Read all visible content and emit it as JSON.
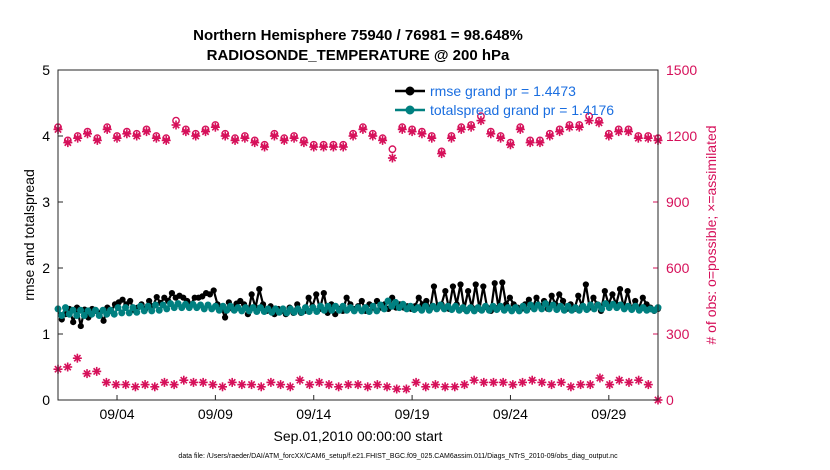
{
  "chart_data": {
    "type": "line",
    "title_line1": "Northern Hemisphere 75940 / 76981 = 98.648%",
    "title_line2": "RADIOSONDE_TEMPERATURE @ 200 hPa",
    "xlabel": "Sep.01,2010 00:00:00 start",
    "ylabel_left": "rmse and totalspread",
    "ylabel_right": "# of obs: o=possible; ×=assimilated",
    "footer": "data file: /Users/raeder/DAI/ATM_forcXX/CAM6_setup/f.e21.FHIST_BGC.f09_025.CAM6assim.011/Diags_NTrS_2010-09/obs_diag_output.nc",
    "x_range_days": [
      1,
      31.5
    ],
    "x_ticks": [
      {
        "day": 4,
        "label": "09/04"
      },
      {
        "day": 9,
        "label": "09/09"
      },
      {
        "day": 14,
        "label": "09/14"
      },
      {
        "day": 19,
        "label": "09/19"
      },
      {
        "day": 24,
        "label": "09/24"
      },
      {
        "day": 29,
        "label": "09/29"
      }
    ],
    "ylim_left": [
      0,
      5
    ],
    "yticks_left": [
      "0",
      "1",
      "2",
      "3",
      "4",
      "5"
    ],
    "ylim_right": [
      0,
      1500
    ],
    "yticks_right": [
      "0",
      "300",
      "600",
      "900",
      "1200",
      "1500"
    ],
    "colors": {
      "rmse": "#000000",
      "spread": "#008080",
      "obs": "#d6105a"
    },
    "legend": [
      {
        "name": "rmse grand pr = 1.4473",
        "series": "rmse"
      },
      {
        "name": "totalspread grand pr = 1.4176",
        "series": "spread"
      }
    ],
    "series": [
      {
        "name": "rmse",
        "axis": "left",
        "values": [
          1.38,
          1.22,
          1.3,
          1.38,
          1.18,
          1.4,
          1.12,
          1.37,
          1.25,
          1.38,
          1.35,
          1.32,
          1.2,
          1.4,
          1.35,
          1.45,
          1.48,
          1.52,
          1.45,
          1.5,
          1.36,
          1.4,
          1.45,
          1.38,
          1.5,
          1.42,
          1.56,
          1.47,
          1.55,
          1.5,
          1.62,
          1.55,
          1.58,
          1.55,
          1.5,
          1.45,
          1.55,
          1.55,
          1.57,
          1.62,
          1.6,
          1.66,
          1.45,
          1.4,
          1.25,
          1.48,
          1.38,
          1.46,
          1.5,
          1.45,
          1.3,
          1.6,
          1.4,
          1.68,
          1.45,
          1.35,
          1.42,
          1.3,
          1.38,
          1.35,
          1.3,
          1.4,
          1.32,
          1.45,
          1.32,
          1.35,
          1.55,
          1.42,
          1.6,
          1.38,
          1.62,
          1.32,
          1.45,
          1.3,
          1.38,
          1.35,
          1.55,
          1.45,
          1.38,
          1.42,
          1.5,
          1.35,
          1.45,
          1.4,
          1.5,
          1.4,
          1.45,
          1.38,
          1.55,
          1.4,
          1.45,
          1.4,
          1.42,
          1.38,
          1.42,
          1.55,
          1.45,
          1.5,
          1.38,
          1.72,
          1.4,
          1.45,
          1.65,
          1.38,
          1.72,
          1.45,
          1.75,
          1.38,
          1.65,
          1.4,
          1.75,
          1.38,
          1.72,
          1.4,
          1.35,
          1.77,
          1.4,
          1.78,
          1.45,
          1.55,
          1.45,
          1.4,
          1.38,
          1.45,
          1.52,
          1.4,
          1.55,
          1.42,
          1.5,
          1.38,
          1.58,
          1.45,
          1.6,
          1.5,
          1.38,
          1.45,
          1.38,
          1.58,
          1.42,
          1.75,
          1.4,
          1.55,
          1.45,
          1.35,
          1.65,
          1.45,
          1.6,
          1.45,
          1.68,
          1.4,
          1.65,
          1.38,
          1.5,
          1.4,
          1.55,
          1.45,
          1.4,
          1.35,
          1.38
        ]
      },
      {
        "name": "totalspread",
        "axis": "left",
        "values": [
          1.38,
          1.28,
          1.4,
          1.3,
          1.36,
          1.28,
          1.36,
          1.28,
          1.35,
          1.3,
          1.36,
          1.28,
          1.36,
          1.3,
          1.36,
          1.3,
          1.4,
          1.32,
          1.4,
          1.32,
          1.4,
          1.33,
          1.42,
          1.35,
          1.42,
          1.35,
          1.44,
          1.36,
          1.44,
          1.38,
          1.46,
          1.4,
          1.46,
          1.4,
          1.45,
          1.4,
          1.45,
          1.4,
          1.44,
          1.38,
          1.44,
          1.38,
          1.42,
          1.36,
          1.42,
          1.36,
          1.42,
          1.36,
          1.4,
          1.35,
          1.4,
          1.35,
          1.4,
          1.34,
          1.4,
          1.34,
          1.38,
          1.33,
          1.38,
          1.33,
          1.38,
          1.32,
          1.38,
          1.33,
          1.38,
          1.33,
          1.4,
          1.34,
          1.4,
          1.34,
          1.42,
          1.36,
          1.42,
          1.36,
          1.42,
          1.36,
          1.42,
          1.36,
          1.4,
          1.35,
          1.4,
          1.35,
          1.4,
          1.34,
          1.42,
          1.35,
          1.44,
          1.38,
          1.5,
          1.42,
          1.48,
          1.4,
          1.45,
          1.38,
          1.42,
          1.37,
          1.4,
          1.36,
          1.42,
          1.36,
          1.42,
          1.38,
          1.44,
          1.38,
          1.42,
          1.37,
          1.42,
          1.36,
          1.4,
          1.35,
          1.4,
          1.35,
          1.4,
          1.36,
          1.42,
          1.36,
          1.42,
          1.37,
          1.42,
          1.36,
          1.4,
          1.35,
          1.4,
          1.35,
          1.42,
          1.36,
          1.44,
          1.38,
          1.44,
          1.38,
          1.46,
          1.38,
          1.44,
          1.37,
          1.42,
          1.36,
          1.42,
          1.36,
          1.4,
          1.36,
          1.42,
          1.37,
          1.44,
          1.38,
          1.44,
          1.38,
          1.46,
          1.4,
          1.45,
          1.4,
          1.44,
          1.38,
          1.42,
          1.37,
          1.42,
          1.36,
          1.4,
          1.36,
          1.38,
          1.36,
          1.4
        ]
      },
      {
        "name": "obs_possible",
        "axis": "right",
        "values": [
          1240,
          1180,
          1200,
          1220,
          1190,
          1240,
          1200,
          1220,
          1210,
          1230,
          1200,
          1190,
          1270,
          1230,
          1210,
          1230,
          1250,
          1210,
          1190,
          1200,
          1180,
          1160,
          1210,
          1190,
          1200,
          1180,
          1160,
          1160,
          1160,
          1160,
          1210,
          1240,
          1210,
          1190,
          1140,
          1240,
          1230,
          1220,
          1200,
          1130,
          1200,
          1240,
          1250,
          1290,
          1220,
          1200,
          1170,
          1240,
          1180,
          1180,
          1210,
          1230,
          1250,
          1250,
          1290,
          1270,
          1210,
          1230,
          1230,
          1200,
          1200,
          1190
        ]
      },
      {
        "name": "obs_assimilated",
        "axis": "right",
        "values": [
          1230,
          1170,
          1190,
          1210,
          1180,
          1230,
          1190,
          1210,
          1200,
          1220,
          1190,
          1180,
          1250,
          1220,
          1200,
          1220,
          1240,
          1200,
          1180,
          1190,
          1170,
          1150,
          1200,
          1180,
          1190,
          1170,
          1150,
          1150,
          1150,
          1150,
          1200,
          1230,
          1200,
          1180,
          1100,
          1230,
          1220,
          1210,
          1190,
          1120,
          1190,
          1230,
          1240,
          1270,
          1210,
          1190,
          1160,
          1230,
          1170,
          1170,
          1200,
          1220,
          1240,
          1240,
          1270,
          1260,
          1200,
          1220,
          1220,
          1190,
          1190,
          1180
        ]
      },
      {
        "name": "obs_rejected",
        "axis": "right",
        "values": [
          140,
          150,
          190,
          120,
          130,
          80,
          70,
          70,
          60,
          70,
          60,
          80,
          70,
          90,
          80,
          80,
          70,
          60,
          80,
          70,
          70,
          60,
          80,
          70,
          60,
          90,
          70,
          80,
          70,
          60,
          70,
          70,
          60,
          70,
          60,
          50,
          50,
          80,
          60,
          70,
          60,
          60,
          70,
          90,
          80,
          80,
          80,
          70,
          80,
          90,
          80,
          70,
          80,
          60,
          70,
          70,
          100,
          70,
          90,
          80,
          90,
          70,
          0
        ]
      }
    ]
  }
}
